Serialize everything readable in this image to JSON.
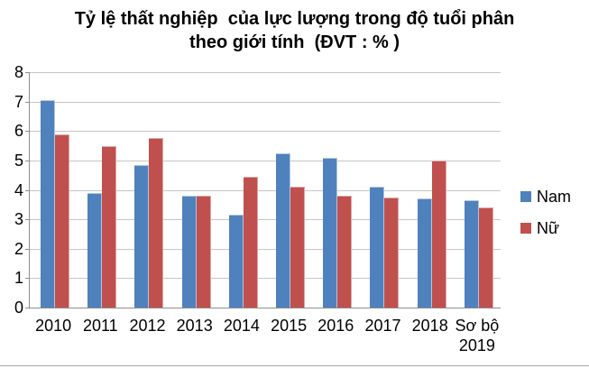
{
  "title": {
    "line1": "Tỷ lệ thất nghiệp  của lực lượng trong độ tuổi phân",
    "line2": "theo giới tính  (ĐVT : % )"
  },
  "chart_data": {
    "type": "bar",
    "title": "Tỷ lệ thất nghiệp của lực lượng trong độ tuổi phân theo giới tính (ĐVT : % )",
    "unit": "%",
    "categories": [
      "2010",
      "2011",
      "2012",
      "2013",
      "2014",
      "2015",
      "2016",
      "2017",
      "2018",
      "Sơ bộ\n2019"
    ],
    "series": [
      {
        "name": "Nam",
        "color": "#4f81bd",
        "border_color": "#b0c6e1",
        "values": [
          7.05,
          3.9,
          4.85,
          3.8,
          3.15,
          5.25,
          5.1,
          4.1,
          3.7,
          3.65
        ]
      },
      {
        "name": "Nữ",
        "color": "#c0504d",
        "border_color": "#dfa7a5",
        "values": [
          5.9,
          5.5,
          5.75,
          3.8,
          4.45,
          4.1,
          3.8,
          3.75,
          5.0,
          3.4
        ]
      }
    ],
    "ylim": [
      0,
      8
    ],
    "yticks": [
      0,
      1,
      2,
      3,
      4,
      5,
      6,
      7,
      8
    ],
    "xlabel": "",
    "ylabel": "",
    "grid": "horizontal",
    "gridline_color": "#c6c6c6",
    "axis_color": "#8e8e8e",
    "legend_position": "right"
  },
  "legend": {
    "items": [
      {
        "label": "Nam",
        "color": "#4f81bd"
      },
      {
        "label": "Nữ",
        "color": "#c0504d"
      }
    ]
  }
}
